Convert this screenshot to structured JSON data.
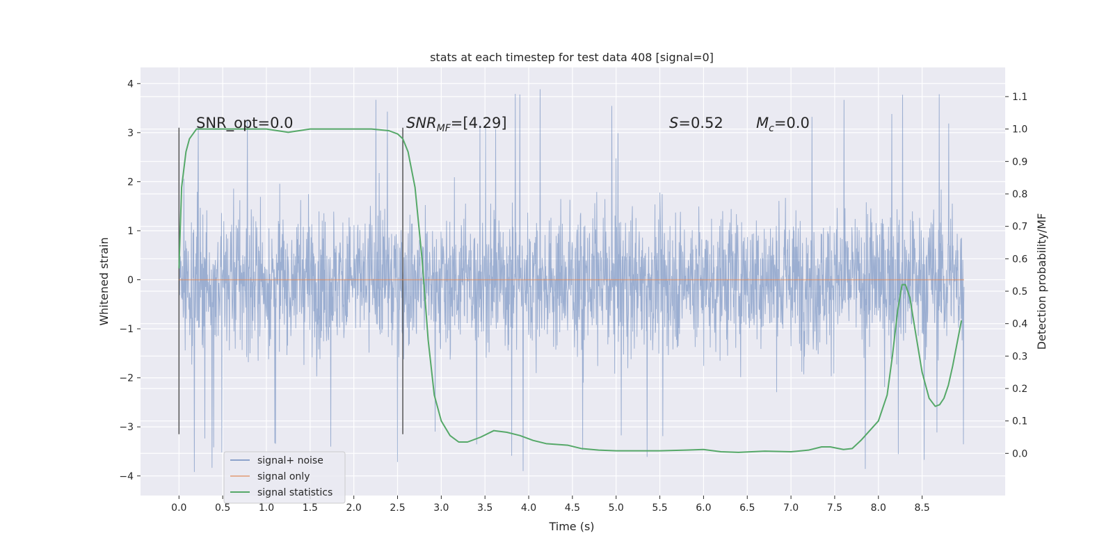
{
  "chart_data": {
    "type": "line",
    "title": "stats at each timestep for test data 408 [signal=0]",
    "xlabel": "Time (s)",
    "ylabel": "Whitened strain",
    "y2label": "Detection probability/MF",
    "xlim": [
      -0.44,
      9.45
    ],
    "ylim": [
      -4.4,
      4.33
    ],
    "y2lim": [
      -0.13,
      1.19
    ],
    "x_ticks": [
      "0.0",
      "0.5",
      "1.0",
      "1.5",
      "2.0",
      "2.5",
      "3.0",
      "3.5",
      "4.0",
      "4.5",
      "5.0",
      "5.5",
      "6.0",
      "6.5",
      "7.0",
      "7.5",
      "8.0",
      "8.5"
    ],
    "y_ticks": [
      "4",
      "3",
      "2",
      "1",
      "0",
      "−1",
      "−2",
      "−3",
      "−4"
    ],
    "y2_ticks": [
      "1.1",
      "1.0",
      "0.9",
      "0.8",
      "0.7",
      "0.6",
      "0.5",
      "0.4",
      "0.3",
      "0.2",
      "0.1",
      "0.0"
    ],
    "grid": true,
    "legend_position": "lower-left",
    "annotations": {
      "snr_opt": "SNR_opt=0.0",
      "snr_mf_main": "SNR",
      "snr_mf_sub": "MF",
      "snr_mf_val": "=[4.29]",
      "s_main": "S",
      "s_val": "=0.52",
      "mc_main": "M",
      "mc_sub": "c",
      "mc_val": "=0.0"
    },
    "markers_x": [
      0.0,
      2.56
    ],
    "markers_yrange": [
      -3.15,
      3.1
    ],
    "noise_envelope": {
      "x_range": [
        0.0,
        8.98
      ],
      "typical_max": 2.3,
      "typical_min": -2.2,
      "peak_max": 3.95,
      "peak_min": -4.0
    },
    "series": [
      {
        "name": "signal+ noise",
        "color": "#4c72b0"
      },
      {
        "name": "signal only",
        "color": "#dd8452",
        "x": [
          0.0,
          8.98
        ],
        "y": [
          0.0,
          0.0
        ]
      },
      {
        "name": "signal statistics",
        "color": "#55a868",
        "x": [
          0.0,
          0.03,
          0.08,
          0.12,
          0.2,
          0.4,
          0.7,
          1.0,
          1.25,
          1.5,
          1.8,
          2.0,
          2.2,
          2.4,
          2.5,
          2.56,
          2.62,
          2.7,
          2.78,
          2.85,
          2.92,
          3.0,
          3.1,
          3.2,
          3.3,
          3.45,
          3.6,
          3.75,
          3.9,
          4.05,
          4.2,
          4.45,
          4.6,
          4.8,
          5.0,
          5.5,
          5.8,
          6.0,
          6.2,
          6.4,
          6.7,
          7.0,
          7.2,
          7.35,
          7.45,
          7.6,
          7.7,
          7.8,
          8.0,
          8.1,
          8.16,
          8.22,
          8.27,
          8.31,
          8.36,
          8.42,
          8.5,
          8.58,
          8.65,
          8.7,
          8.75,
          8.8,
          8.85,
          8.9,
          8.95
        ],
        "y": [
          0.57,
          0.82,
          0.93,
          0.97,
          1.0,
          1.0,
          1.0,
          1.0,
          0.99,
          1.0,
          1.0,
          1.0,
          1.0,
          0.995,
          0.985,
          0.97,
          0.93,
          0.82,
          0.6,
          0.35,
          0.18,
          0.1,
          0.055,
          0.035,
          0.035,
          0.05,
          0.07,
          0.065,
          0.055,
          0.04,
          0.03,
          0.025,
          0.015,
          0.01,
          0.008,
          0.008,
          0.01,
          0.012,
          0.005,
          0.003,
          0.007,
          0.005,
          0.01,
          0.02,
          0.02,
          0.012,
          0.015,
          0.04,
          0.1,
          0.18,
          0.3,
          0.44,
          0.52,
          0.52,
          0.48,
          0.38,
          0.25,
          0.17,
          0.145,
          0.15,
          0.17,
          0.21,
          0.27,
          0.34,
          0.41
        ]
      }
    ]
  }
}
